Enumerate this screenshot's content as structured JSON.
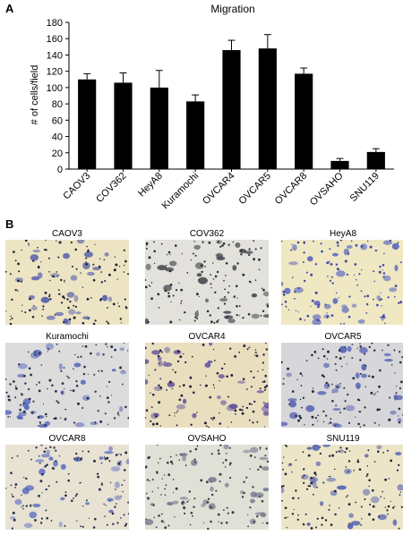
{
  "panel_a_label": "A",
  "panel_b_label": "B",
  "chart_data": {
    "type": "bar",
    "title": "Migration",
    "xlabel": "",
    "ylabel": "# of cells/field",
    "categories": [
      "CAOV3",
      "COV362",
      "HeyA8",
      "Kuramochi",
      "OVCAR4",
      "OVCAR5",
      "OVCAR8",
      "OVSAHO",
      "SNU119"
    ],
    "values": [
      110,
      106,
      100,
      83,
      146,
      148,
      117,
      10,
      21
    ],
    "errors": [
      7,
      12,
      21,
      8,
      12,
      17,
      7,
      3,
      4
    ],
    "ylim": [
      0,
      180
    ],
    "yticks": [
      0,
      20,
      40,
      60,
      80,
      100,
      120,
      140,
      160,
      180
    ],
    "grid": false,
    "bar_color": "#000000"
  },
  "micrographs": [
    {
      "label": "CAOV3",
      "bg": "#ede4c4",
      "dot": "#1e2230",
      "cell": "#4a55a8"
    },
    {
      "label": "COV362",
      "bg": "#e3e1dc",
      "dot": "#2a2a30",
      "cell": "#3a3a44"
    },
    {
      "label": "HeyA8",
      "bg": "#efe8c2",
      "dot": "#4048a8",
      "cell": "#4a58c0"
    },
    {
      "label": "Kuramochi",
      "bg": "#dcdcdc",
      "dot": "#2c2f44",
      "cell": "#4a5cb8"
    },
    {
      "label": "OVCAR4",
      "bg": "#e9dfbf",
      "dot": "#2a2140",
      "cell": "#5a4a9a"
    },
    {
      "label": "OVCAR5",
      "bg": "#d7d7da",
      "dot": "#2a2a38",
      "cell": "#4a58b0"
    },
    {
      "label": "OVCAR8",
      "bg": "#e7e2d2",
      "dot": "#2a2e4c",
      "cell": "#5668c0"
    },
    {
      "label": "OVSAHO",
      "bg": "#e0e1d6",
      "dot": "#383a40",
      "cell": "#6a708a"
    },
    {
      "label": "SNU119",
      "bg": "#ece5c8",
      "dot": "#23253a",
      "cell": "#4a58b0"
    }
  ]
}
